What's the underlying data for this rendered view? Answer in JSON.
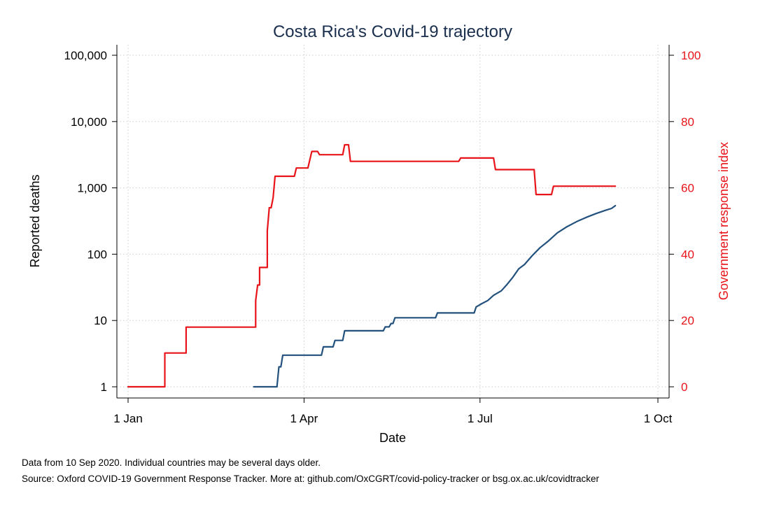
{
  "chart_data": {
    "type": "line",
    "title": "Costa Rica's Covid-19 trajectory",
    "xlabel": "Date",
    "ylabel": "Reported deaths",
    "y2label": "Government response index",
    "x_ticks": [
      "1 Jan",
      "1 Apr",
      "1 Jul",
      "1 Oct"
    ],
    "y_ticks": [
      "1",
      "10",
      "100",
      "1,000",
      "10,000",
      "100,000"
    ],
    "y2_ticks": [
      "0",
      "20",
      "40",
      "60",
      "80",
      "100"
    ],
    "y_scale": "log",
    "ylim": [
      1,
      100000
    ],
    "y2lim": [
      0,
      100
    ],
    "xlim": [
      "2020-01-01",
      "2020-10-01"
    ],
    "grid": true,
    "colors": {
      "deaths": "#23517d",
      "response": "#e8141a",
      "title": "#1a2f4d"
    },
    "series": [
      {
        "axis": "left",
        "color": "#23517d",
        "points": [
          [
            "2020-03-06",
            1
          ],
          [
            "2020-03-18",
            1
          ],
          [
            "2020-03-19",
            2
          ],
          [
            "2020-03-20",
            2
          ],
          [
            "2020-03-21",
            3
          ],
          [
            "2020-04-10",
            3
          ],
          [
            "2020-04-11",
            4
          ],
          [
            "2020-04-16",
            4
          ],
          [
            "2020-04-17",
            5
          ],
          [
            "2020-04-21",
            5
          ],
          [
            "2020-04-22",
            7
          ],
          [
            "2020-05-12",
            7
          ],
          [
            "2020-05-13",
            8
          ],
          [
            "2020-05-15",
            8
          ],
          [
            "2020-05-16",
            9
          ],
          [
            "2020-05-17",
            9
          ],
          [
            "2020-05-18",
            11
          ],
          [
            "2020-06-08",
            11
          ],
          [
            "2020-06-09",
            13
          ],
          [
            "2020-06-28",
            13
          ],
          [
            "2020-06-29",
            16
          ],
          [
            "2020-07-02",
            18
          ],
          [
            "2020-07-05",
            20
          ],
          [
            "2020-07-08",
            24
          ],
          [
            "2020-07-12",
            28
          ],
          [
            "2020-07-15",
            35
          ],
          [
            "2020-07-18",
            45
          ],
          [
            "2020-07-21",
            60
          ],
          [
            "2020-07-24",
            70
          ],
          [
            "2020-07-28",
            95
          ],
          [
            "2020-08-01",
            125
          ],
          [
            "2020-08-05",
            155
          ],
          [
            "2020-08-10",
            210
          ],
          [
            "2020-08-15",
            260
          ],
          [
            "2020-08-20",
            310
          ],
          [
            "2020-08-25",
            360
          ],
          [
            "2020-08-30",
            410
          ],
          [
            "2020-09-04",
            460
          ],
          [
            "2020-09-07",
            490
          ],
          [
            "2020-09-09",
            540
          ]
        ]
      },
      {
        "axis": "right",
        "color": "#e8141a",
        "points": [
          [
            "2020-01-01",
            0
          ],
          [
            "2020-01-20",
            0
          ],
          [
            "2020-01-20",
            10.2
          ],
          [
            "2020-01-31",
            10.2
          ],
          [
            "2020-01-31",
            18
          ],
          [
            "2020-03-07",
            18
          ],
          [
            "2020-03-07",
            26
          ],
          [
            "2020-03-08",
            30.7
          ],
          [
            "2020-03-09",
            30.7
          ],
          [
            "2020-03-09",
            36
          ],
          [
            "2020-03-13",
            36
          ],
          [
            "2020-03-13",
            47
          ],
          [
            "2020-03-14",
            54
          ],
          [
            "2020-03-15",
            54
          ],
          [
            "2020-03-16",
            57
          ],
          [
            "2020-03-17",
            63.5
          ],
          [
            "2020-03-27",
            63.5
          ],
          [
            "2020-03-28",
            66
          ],
          [
            "2020-04-03",
            66
          ],
          [
            "2020-04-05",
            71
          ],
          [
            "2020-04-08",
            71
          ],
          [
            "2020-04-09",
            70
          ],
          [
            "2020-04-21",
            70
          ],
          [
            "2020-04-22",
            73
          ],
          [
            "2020-04-24",
            73
          ],
          [
            "2020-04-25",
            68
          ],
          [
            "2020-06-20",
            68
          ],
          [
            "2020-06-21",
            69
          ],
          [
            "2020-07-08",
            69
          ],
          [
            "2020-07-09",
            65.5
          ],
          [
            "2020-07-29",
            65.5
          ],
          [
            "2020-07-30",
            58
          ],
          [
            "2020-08-07",
            58
          ],
          [
            "2020-08-08",
            60.5
          ],
          [
            "2020-09-09",
            60.5
          ]
        ]
      }
    ]
  },
  "notes": {
    "line1": "Data from 10 Sep 2020. Individual countries may be several days older.",
    "line2": "Source: Oxford COVID-19 Government Response Tracker. More at: github.com/OxCGRT/covid-policy-tracker or bsg.ox.ac.uk/covidtracker"
  }
}
